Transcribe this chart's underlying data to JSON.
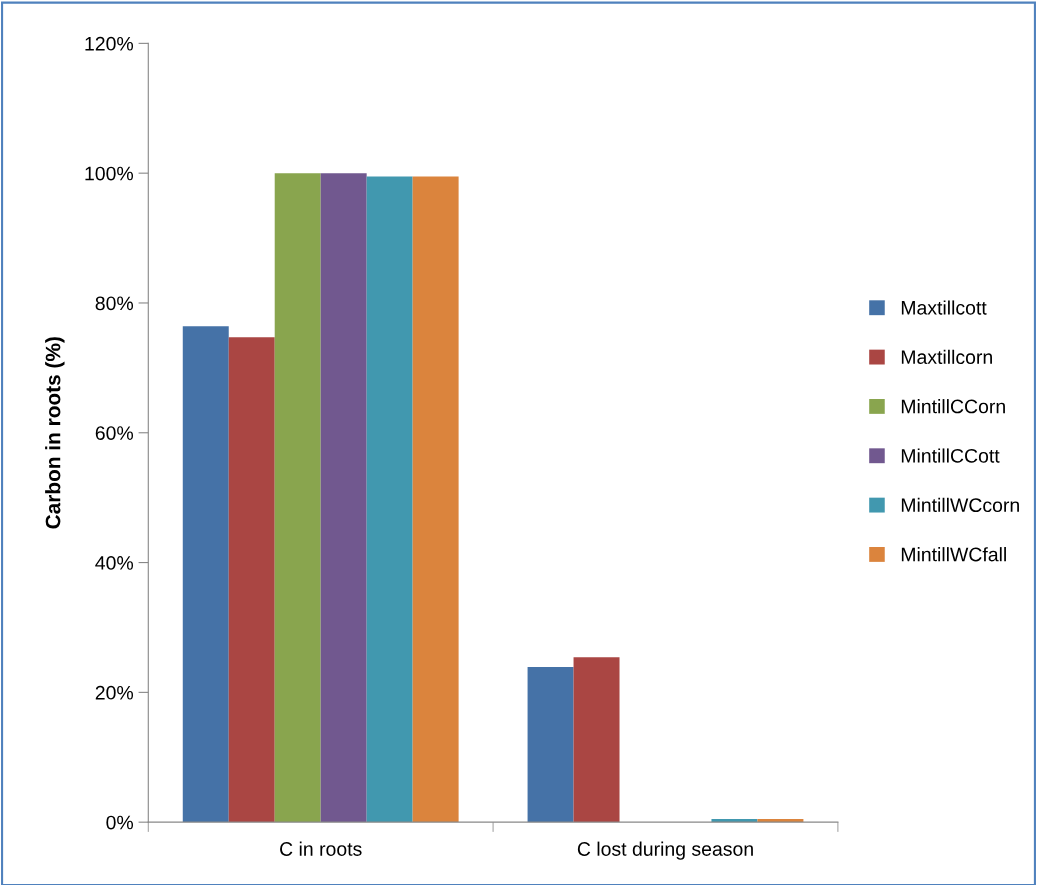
{
  "chart_data": {
    "type": "bar",
    "ylabel": "Carbon in roots (%)",
    "categories": [
      "C in roots",
      "C lost during season"
    ],
    "series": [
      {
        "name": "Maxtillcott",
        "color": "#4572a7",
        "values": [
          76.4,
          23.9
        ]
      },
      {
        "name": "Maxtillcorn",
        "color": "#aa4643",
        "values": [
          74.7,
          25.4
        ]
      },
      {
        "name": "MintillCCorn",
        "color": "#89a54e",
        "values": [
          100,
          0
        ]
      },
      {
        "name": "MintillCCott",
        "color": "#71588f",
        "values": [
          100,
          0
        ]
      },
      {
        "name": "MintillWCcorn",
        "color": "#4198af",
        "values": [
          99.5,
          0.5
        ]
      },
      {
        "name": "MintillWCfall",
        "color": "#db843d",
        "values": [
          99.5,
          0.5
        ]
      }
    ],
    "ylim": [
      0,
      120
    ],
    "yticks": [
      {
        "value": 0,
        "label": "0%"
      },
      {
        "value": 20,
        "label": "20%"
      },
      {
        "value": 40,
        "label": "40%"
      },
      {
        "value": 60,
        "label": "60%"
      },
      {
        "value": 80,
        "label": "80%"
      },
      {
        "value": 100,
        "label": "100%"
      },
      {
        "value": 120,
        "label": "120%"
      }
    ],
    "grid": false,
    "legend": "right"
  }
}
